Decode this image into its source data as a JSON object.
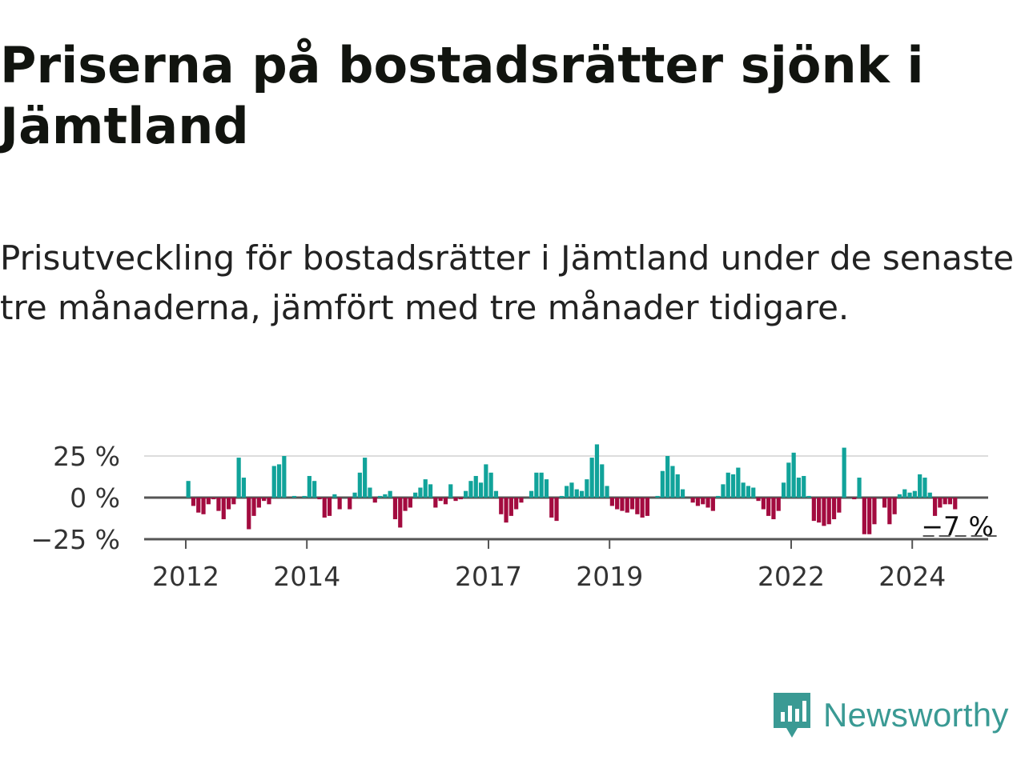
{
  "title": "Priserna på bostadsrätter sjönk i Jämtland",
  "subtitle": "Prisutveckling för bostadsrätter i Jämtland under de senaste tre månaderna, jämfört med tre månader tidigare.",
  "brand": {
    "name": "Newsworthy",
    "color": "#3a9a94"
  },
  "colors": {
    "positive": "#11a39a",
    "negative": "#a30b3f",
    "baseline": "#555555",
    "grid": "#dddddd"
  },
  "chart_data": {
    "type": "bar",
    "xlabel": "",
    "ylabel": "",
    "ylim": [
      -25,
      30
    ],
    "grid": true,
    "y_ticks": [
      {
        "value": 25,
        "label": "25 %"
      },
      {
        "value": 0,
        "label": "0 %"
      },
      {
        "value": -25,
        "label": "−25 %"
      }
    ],
    "x_ticks": [
      {
        "year": 2012,
        "label": "2012"
      },
      {
        "year": 2014,
        "label": "2014"
      },
      {
        "year": 2017,
        "label": "2017"
      },
      {
        "year": 2019,
        "label": "2019"
      },
      {
        "year": 2022,
        "label": "2022"
      },
      {
        "year": 2024,
        "label": "2024"
      }
    ],
    "start": "2012-01",
    "end": "2024-07",
    "last_value_label": "−7 %",
    "series": [
      {
        "values": [
          10,
          -5,
          -9,
          -10,
          -4,
          -1,
          -8,
          -13,
          -7,
          -4,
          24,
          12,
          -19,
          -11,
          -6,
          -2,
          -4,
          19,
          20,
          25,
          0,
          1,
          0,
          1,
          13,
          10,
          -1,
          -12,
          -11,
          2,
          -7,
          0,
          -7,
          3,
          15,
          24,
          6,
          -3,
          1,
          2,
          4,
          -13,
          -18,
          -8,
          -6,
          3,
          6,
          11,
          8,
          -6,
          -2,
          -4,
          8,
          -2,
          -1,
          4,
          10,
          13,
          9,
          20,
          15,
          4,
          -10,
          -15,
          -11,
          -7,
          -3,
          0,
          4,
          15,
          15,
          11,
          -12,
          -14,
          1,
          7,
          9,
          5,
          4,
          11,
          24,
          32,
          20,
          7,
          -5,
          -7,
          -8,
          -9,
          -7,
          -10,
          -12,
          -11,
          0,
          1,
          16,
          25,
          19,
          14,
          5,
          0,
          -3,
          -5,
          -4,
          -6,
          -8,
          1,
          8,
          15,
          14,
          18,
          9,
          7,
          6,
          -2,
          -7,
          -11,
          -13,
          -8,
          9,
          21,
          27,
          12,
          13,
          1,
          -14,
          -15,
          -17,
          -16,
          -13,
          -9,
          30,
          0,
          -1,
          12,
          -22,
          -22,
          -16,
          0,
          -6,
          -16,
          -10,
          2,
          5,
          3,
          4,
          14,
          12,
          3,
          -11,
          -6,
          -4,
          -4,
          -7
        ]
      }
    ]
  }
}
